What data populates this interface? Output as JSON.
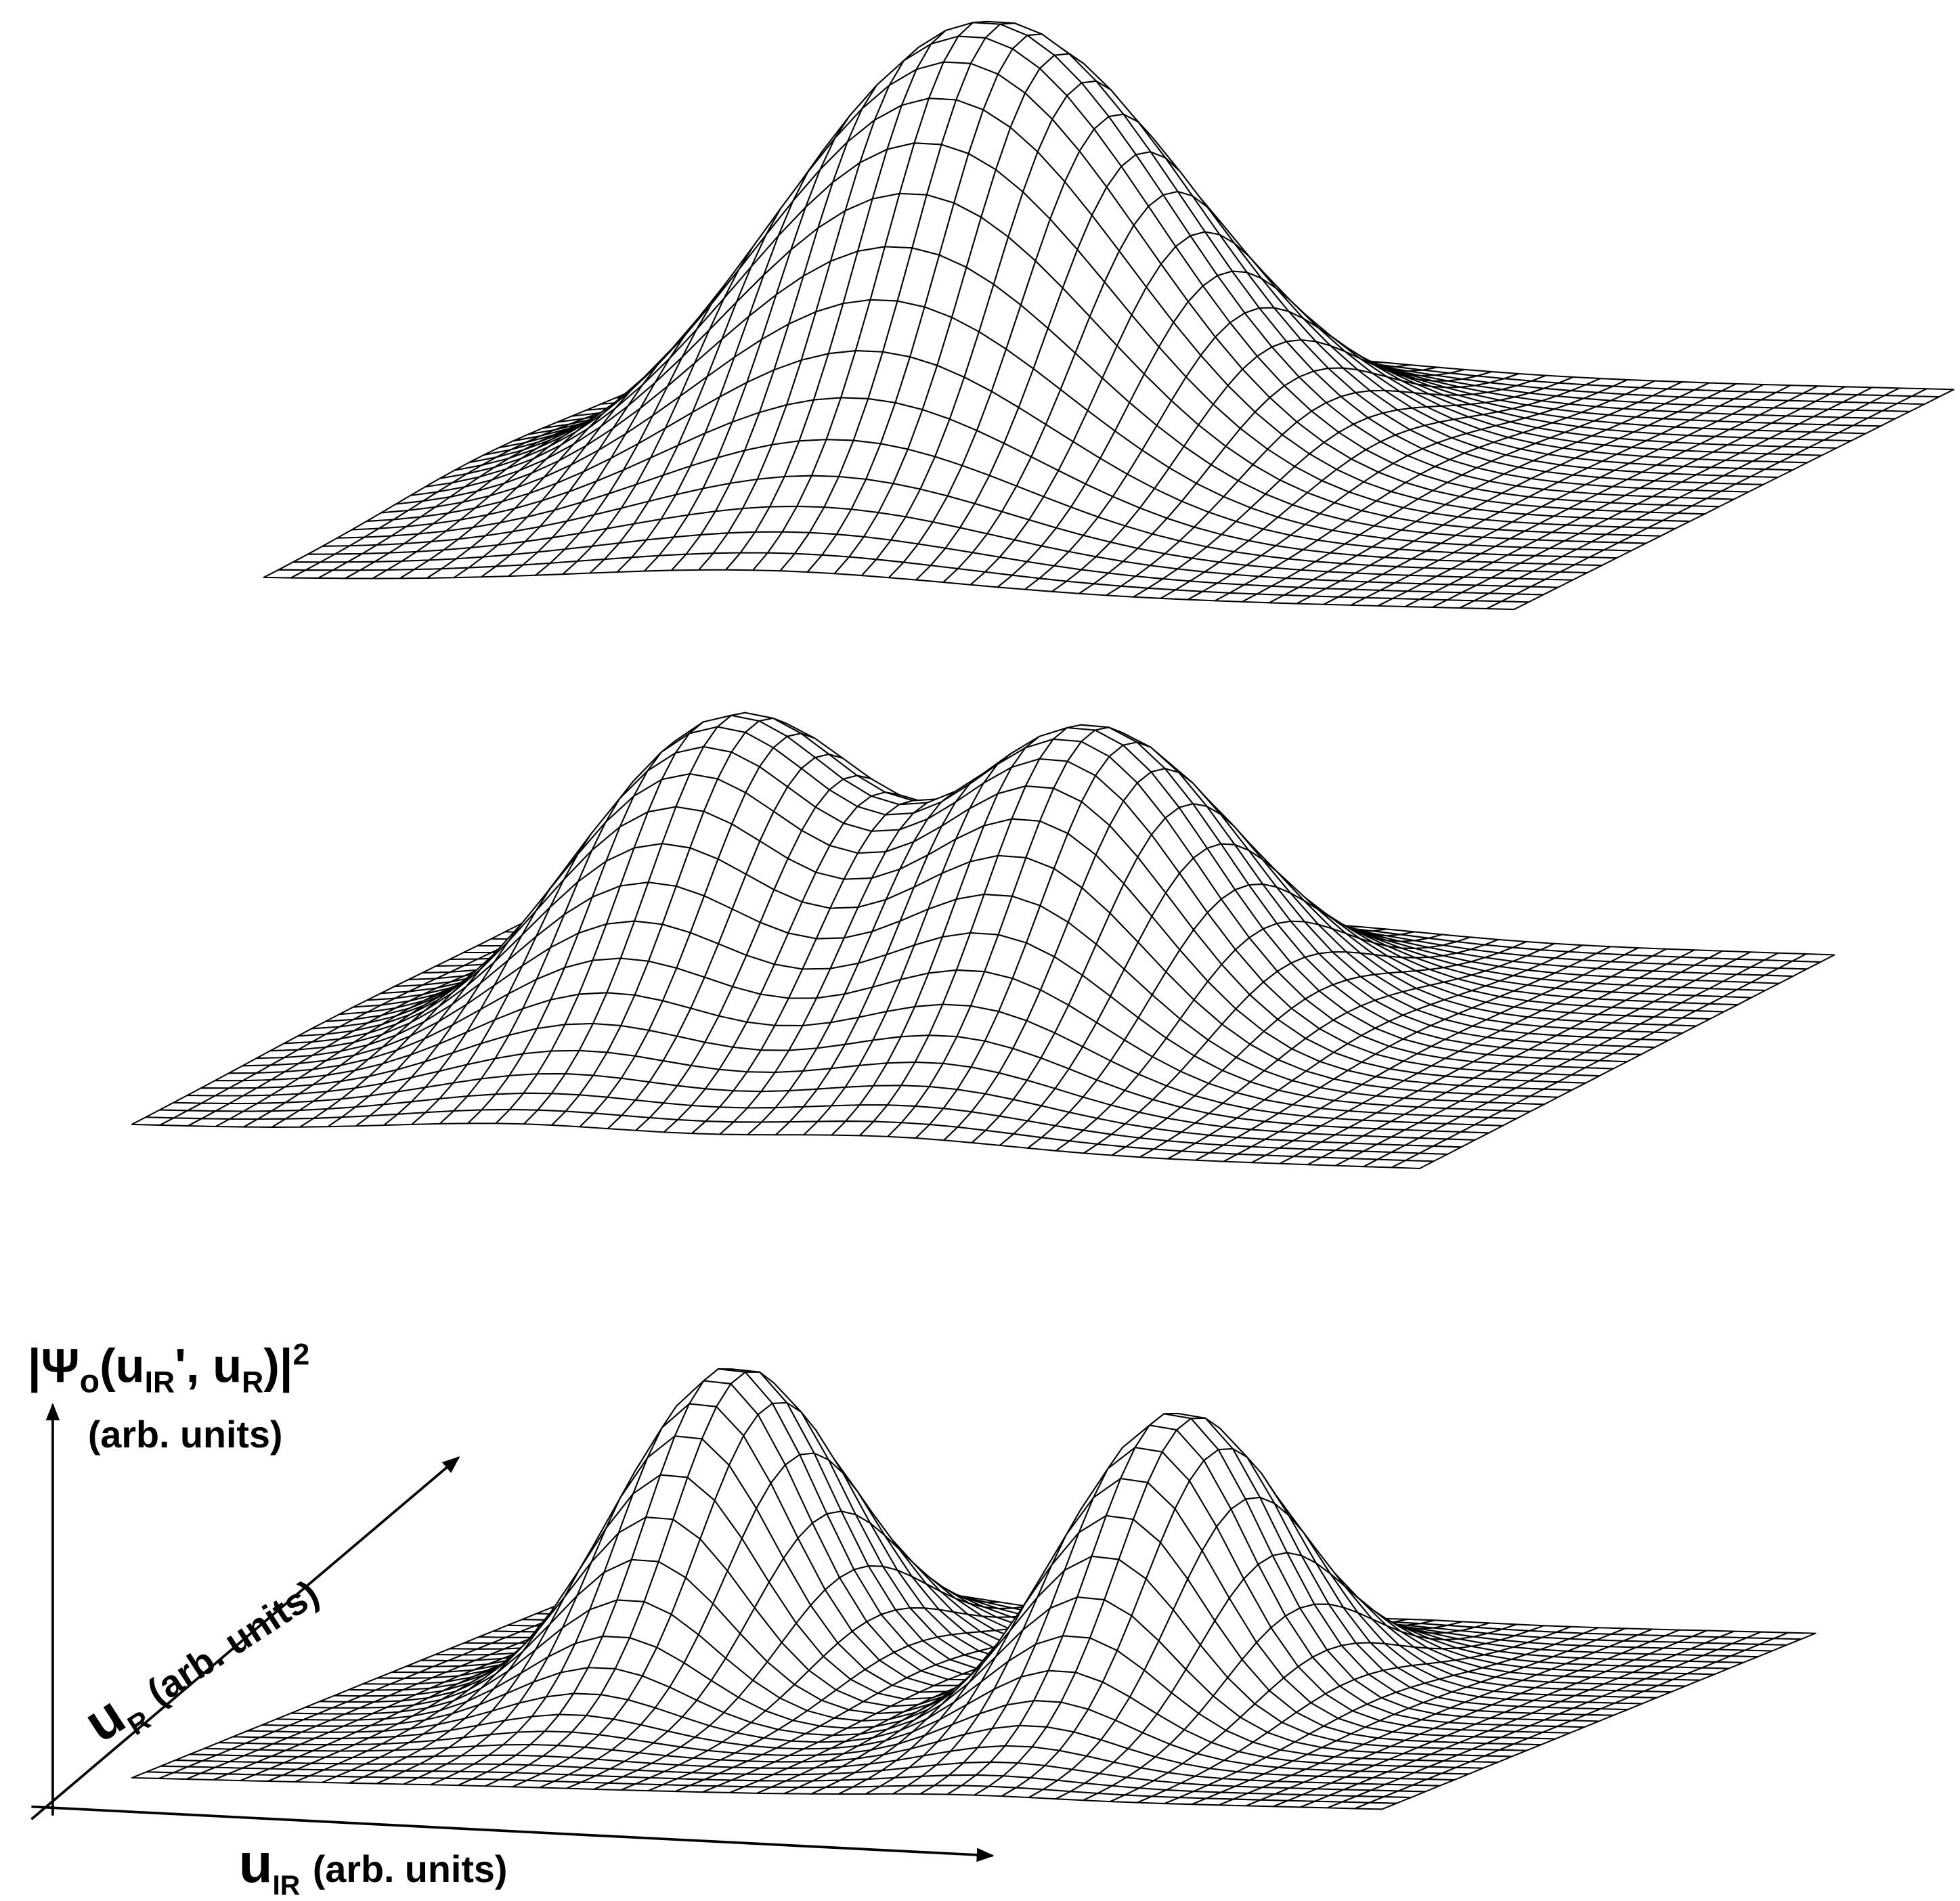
{
  "axes": {
    "z": {
      "open": "|Ψ",
      "open_sub": "o",
      "paren": "(u",
      "first_sub": "IR",
      "sep": "', u",
      "second_sub": "R",
      "close": ")|",
      "power": "2",
      "units": "(arb. units)"
    },
    "r": {
      "symbol": "u",
      "sub": "R",
      "units": "(arb. units)"
    },
    "ir": {
      "symbol": "u",
      "sub": "IR",
      "units": "(arb. units)"
    }
  }
}
